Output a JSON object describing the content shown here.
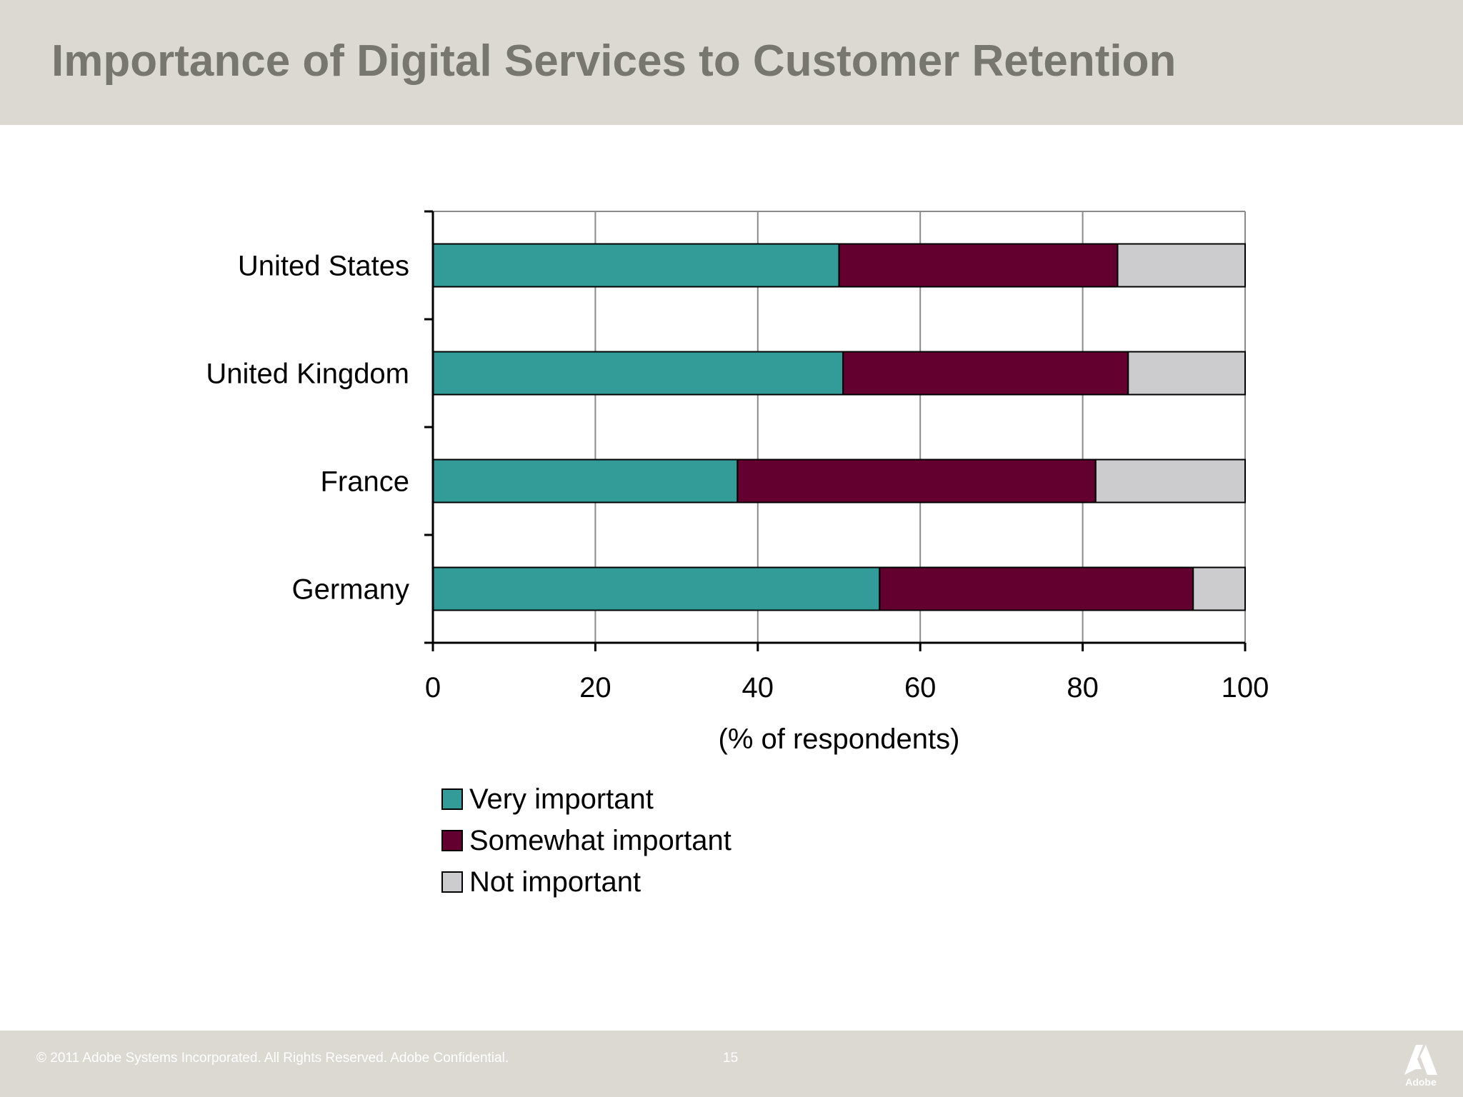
{
  "slide": {
    "title": "Importance of Digital Services to Customer Retention"
  },
  "footer": {
    "copyright": "© 2011 Adobe Systems Incorporated.  All Rights Reserved.  Adobe Confidential.",
    "page_number": "15",
    "logo_text": "Adobe"
  },
  "colors": {
    "header_bg": "#dcd9d2",
    "very_important": "#339c98",
    "somewhat_important": "#630030",
    "not_important": "#cccbcd"
  },
  "chart_data": {
    "type": "bar",
    "orientation": "horizontal",
    "stacked": true,
    "title": "",
    "xlabel": "(% of respondents)",
    "ylabel": "",
    "xlim": [
      0,
      100
    ],
    "xticks": [
      0,
      20,
      40,
      60,
      80,
      100
    ],
    "grid": true,
    "legend_position": "bottom-left",
    "categories": [
      "United States",
      "United Kingdom",
      "France",
      "Germany"
    ],
    "series": [
      {
        "name": "Very important",
        "color": "#339c98",
        "values": [
          50,
          50.5,
          37.5,
          55
        ]
      },
      {
        "name": "Somewhat important",
        "color": "#630030",
        "values": [
          34.3,
          35.1,
          44.1,
          38.6
        ]
      },
      {
        "name": "Not important",
        "color": "#cccbcd",
        "values": [
          15.7,
          14.4,
          18.4,
          6.4
        ]
      }
    ]
  }
}
